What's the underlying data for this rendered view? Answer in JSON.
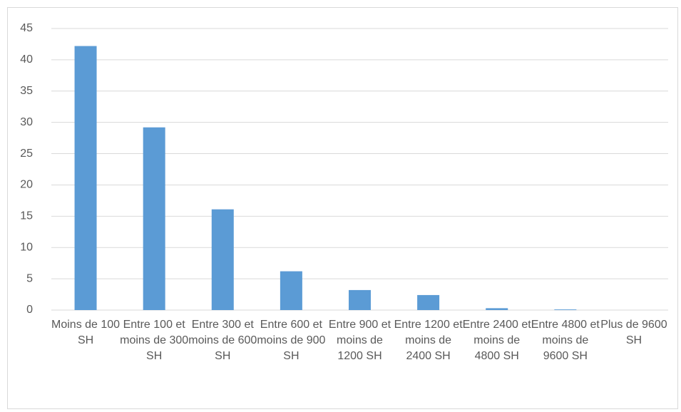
{
  "chart_data": {
    "type": "bar",
    "categories": [
      "Moins de 100 SH",
      "Entre 100 et moins de 300 SH",
      "Entre 300 et moins de 600 SH",
      "Entre 600 et moins de 900 SH",
      "Entre 900 et moins de 1200 SH",
      "Entre 1200 et moins de 2400 SH",
      "Entre 2400 et moins de 4800 SH",
      "Entre 4800 et moins de 9600 SH",
      "Plus de 9600 SH"
    ],
    "values": [
      42.2,
      29.2,
      16.1,
      6.2,
      3.2,
      2.4,
      0.3,
      0.1,
      0
    ],
    "color": "#5b9bd5",
    "ylim": [
      0,
      45
    ],
    "yticks": [
      0,
      5,
      10,
      15,
      20,
      25,
      30,
      35,
      40,
      45
    ],
    "grid": true
  }
}
